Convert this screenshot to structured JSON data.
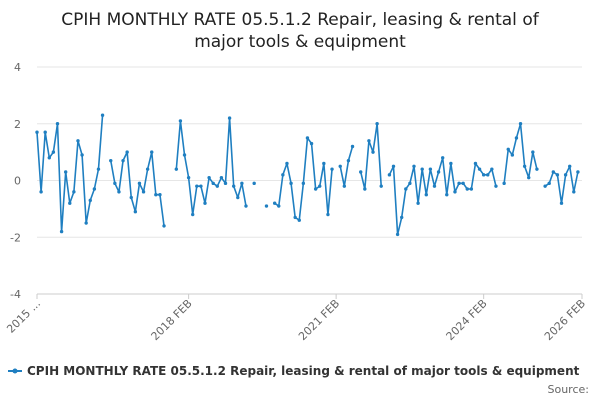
{
  "chart_data": {
    "type": "line",
    "title_lines": [
      "CPIH MONTHLY RATE 05.5.1.2 Repair, leasing & rental of",
      "major tools & equipment"
    ],
    "ylim": [
      -4,
      4
    ],
    "y_ticks": [
      -4,
      -2,
      0,
      2,
      4
    ],
    "x_range": [
      "2015-01",
      "2026-02"
    ],
    "x_tick_labels": [
      {
        "label": "2015 ...",
        "date": "2015-01"
      },
      {
        "label": "2018 FEB",
        "date": "2018-02"
      },
      {
        "label": "2021 FEB",
        "date": "2021-02"
      },
      {
        "label": "2024 FEB",
        "date": "2024-02"
      },
      {
        "label": "2026 FEB",
        "date": "2026-02"
      }
    ],
    "grid": "horizontal",
    "legend_position": "bottom",
    "series": [
      {
        "name": "CPIH MONTHLY RATE 05.5.1.2 Repair, leasing & rental of major tools & equipment",
        "color": "#1f7fc1",
        "start": "2015-01",
        "values": [
          1.7,
          -0.4,
          1.7,
          0.8,
          1.0,
          2.0,
          -1.8,
          0.3,
          -0.8,
          -0.4,
          1.4,
          0.9,
          -1.5,
          -0.7,
          -0.3,
          0.4,
          2.3,
          null,
          0.7,
          -0.1,
          -0.4,
          0.7,
          1.0,
          -0.6,
          -1.1,
          -0.1,
          -0.4,
          0.4,
          1.0,
          -0.5,
          -0.5,
          -1.6,
          null,
          null,
          0.4,
          2.1,
          0.9,
          0.1,
          -1.2,
          -0.2,
          -0.2,
          -0.8,
          0.1,
          -0.1,
          -0.2,
          0.1,
          -0.1,
          2.2,
          -0.2,
          -0.6,
          -0.1,
          -0.9,
          null,
          -0.1,
          null,
          null,
          -0.9,
          null,
          -0.8,
          -0.9,
          0.2,
          0.6,
          -0.1,
          -1.3,
          -1.4,
          -0.1,
          1.5,
          1.3,
          -0.3,
          -0.2,
          0.6,
          -1.2,
          0.4,
          null,
          0.5,
          -0.2,
          0.7,
          1.2,
          null,
          0.3,
          -0.3,
          1.4,
          1.0,
          2.0,
          -0.2,
          null,
          0.2,
          0.5,
          -1.9,
          -1.3,
          -0.3,
          -0.1,
          0.5,
          -0.8,
          0.4,
          -0.5,
          0.4,
          -0.2,
          0.3,
          0.8,
          -0.5,
          0.6,
          -0.4,
          -0.1,
          -0.1,
          -0.3,
          -0.3,
          0.6,
          0.4,
          0.2,
          0.2,
          0.4,
          -0.2,
          null,
          -0.1,
          1.1,
          0.9,
          1.5,
          2.0,
          0.5,
          0.1,
          1.0,
          0.4,
          null,
          -0.2,
          -0.1,
          0.3,
          0.2,
          -0.8,
          0.2,
          0.5,
          -0.4,
          0.3,
          null,
          null,
          null
        ]
      }
    ]
  },
  "legend": {
    "label": "CPIH MONTHLY RATE 05.5.1.2 Repair, leasing & rental of major tools & equipment"
  },
  "source_label": "Source:"
}
